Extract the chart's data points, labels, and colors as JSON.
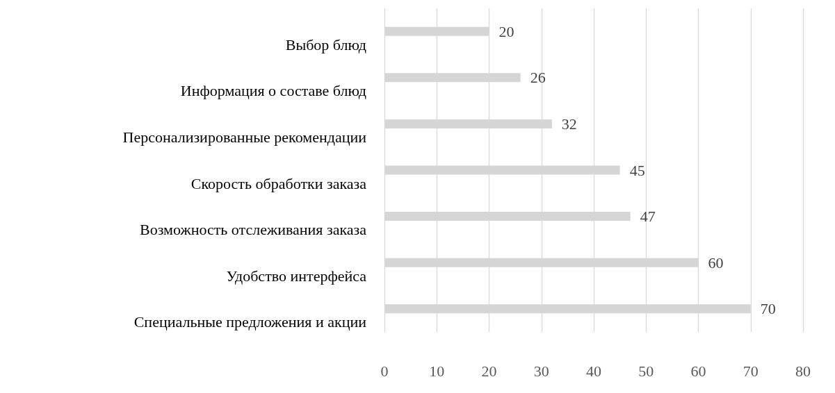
{
  "chart_data": {
    "type": "bar",
    "orientation": "horizontal",
    "categories": [
      "Выбор блюд",
      "Информация о составе блюд",
      "Персонализированные рекомендации",
      "Скорость обработки заказа",
      "Возможность отслеживания заказа",
      "Удобство интерфейса",
      "Специальные предложения и акции"
    ],
    "values": [
      20,
      26,
      32,
      45,
      47,
      60,
      70
    ],
    "color": "#d6d6d6",
    "xlim": [
      0,
      80
    ],
    "xticks": [
      0,
      10,
      20,
      30,
      40,
      50,
      60,
      70,
      80
    ],
    "grid": "x",
    "data_labels": true
  }
}
